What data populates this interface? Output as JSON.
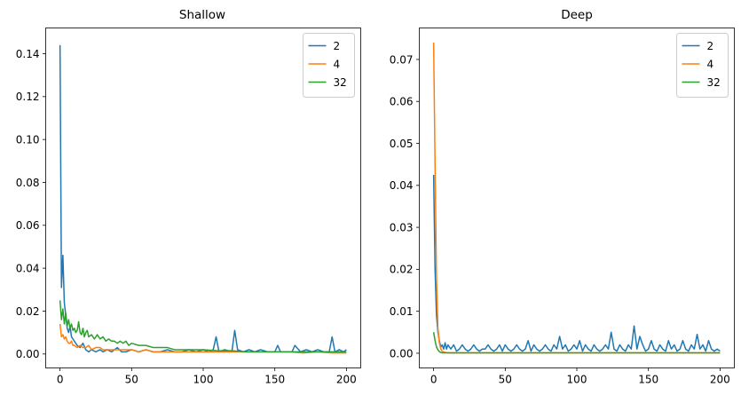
{
  "chart_data": [
    {
      "type": "line",
      "title": "Shallow",
      "xlabel": "",
      "ylabel": "",
      "xlim": [
        -10,
        210
      ],
      "ylim": [
        -0.0065,
        0.152
      ],
      "xticks": [
        0,
        50,
        100,
        150,
        200
      ],
      "xtick_labels": [
        "0",
        "50",
        "100",
        "150",
        "200"
      ],
      "yticks": [
        0.0,
        0.02,
        0.04,
        0.06,
        0.08,
        0.1,
        0.12,
        0.14
      ],
      "ytick_labels": [
        "0.00",
        "0.02",
        "0.04",
        "0.06",
        "0.08",
        "0.10",
        "0.12",
        "0.14"
      ],
      "legend_position": "top-right",
      "grid": false,
      "series": [
        {
          "name": "2",
          "color": "#1f77b4",
          "x": [
            0,
            1,
            2,
            3,
            4,
            5,
            6,
            7,
            8,
            9,
            10,
            12,
            14,
            16,
            18,
            20,
            22,
            25,
            28,
            30,
            33,
            36,
            40,
            43,
            46,
            50,
            55,
            60,
            65,
            70,
            75,
            80,
            85,
            90,
            95,
            100,
            104,
            107,
            109,
            111,
            115,
            120,
            122,
            124,
            128,
            132,
            136,
            140,
            145,
            150,
            152,
            154,
            158,
            162,
            164,
            168,
            172,
            176,
            180,
            184,
            188,
            190,
            192,
            195,
            198,
            200
          ],
          "y": [
            0.144,
            0.031,
            0.046,
            0.024,
            0.018,
            0.012,
            0.01,
            0.013,
            0.008,
            0.007,
            0.006,
            0.004,
            0.003,
            0.005,
            0.002,
            0.001,
            0.002,
            0.001,
            0.002,
            0.001,
            0.002,
            0.001,
            0.003,
            0.001,
            0.001,
            0.002,
            0.001,
            0.002,
            0.001,
            0.001,
            0.002,
            0.001,
            0.001,
            0.002,
            0.001,
            0.002,
            0.001,
            0.002,
            0.008,
            0.001,
            0.002,
            0.001,
            0.011,
            0.002,
            0.001,
            0.002,
            0.001,
            0.002,
            0.001,
            0.001,
            0.004,
            0.001,
            0.001,
            0.001,
            0.004,
            0.001,
            0.002,
            0.001,
            0.002,
            0.001,
            0.001,
            0.008,
            0.001,
            0.002,
            0.001,
            0.002
          ]
        },
        {
          "name": "4",
          "color": "#ff7f0e",
          "x": [
            0,
            1,
            2,
            3,
            4,
            5,
            6,
            7,
            8,
            9,
            10,
            12,
            14,
            16,
            18,
            20,
            22,
            25,
            28,
            30,
            35,
            40,
            45,
            50,
            55,
            60,
            65,
            70,
            75,
            80,
            90,
            100,
            110,
            120,
            130,
            140,
            150,
            160,
            170,
            180,
            190,
            200
          ],
          "y": [
            0.014,
            0.008,
            0.009,
            0.007,
            0.008,
            0.006,
            0.005,
            0.005,
            0.006,
            0.004,
            0.004,
            0.003,
            0.004,
            0.003,
            0.003,
            0.004,
            0.002,
            0.003,
            0.003,
            0.002,
            0.002,
            0.002,
            0.002,
            0.002,
            0.001,
            0.002,
            0.001,
            0.001,
            0.001,
            0.001,
            0.001,
            0.001,
            0.001,
            0.001,
            0.001,
            0.001,
            0.001,
            0.001,
            0.0005,
            0.001,
            0.0005,
            0.0005
          ]
        },
        {
          "name": "32",
          "color": "#2ca02c",
          "x": [
            0,
            1,
            2,
            3,
            4,
            5,
            6,
            7,
            8,
            9,
            10,
            11,
            12,
            13,
            14,
            15,
            16,
            17,
            18,
            19,
            20,
            22,
            24,
            26,
            28,
            30,
            32,
            34,
            36,
            38,
            40,
            42,
            44,
            46,
            48,
            50,
            55,
            60,
            65,
            70,
            75,
            80,
            85,
            90,
            95,
            100,
            110,
            120,
            130,
            140,
            150,
            160,
            170,
            180,
            190,
            200
          ],
          "y": [
            0.025,
            0.016,
            0.021,
            0.014,
            0.019,
            0.013,
            0.016,
            0.012,
            0.014,
            0.011,
            0.012,
            0.01,
            0.011,
            0.015,
            0.01,
            0.009,
            0.012,
            0.008,
            0.01,
            0.011,
            0.008,
            0.009,
            0.007,
            0.009,
            0.007,
            0.008,
            0.006,
            0.007,
            0.006,
            0.006,
            0.005,
            0.006,
            0.005,
            0.006,
            0.004,
            0.005,
            0.004,
            0.004,
            0.003,
            0.003,
            0.003,
            0.002,
            0.002,
            0.002,
            0.002,
            0.002,
            0.0015,
            0.0015,
            0.001,
            0.001,
            0.001,
            0.001,
            0.001,
            0.001,
            0.001,
            0.001
          ]
        }
      ]
    },
    {
      "type": "line",
      "title": "Deep",
      "xlabel": "",
      "ylabel": "",
      "xlim": [
        -10,
        210
      ],
      "ylim": [
        -0.0035,
        0.0775
      ],
      "xticks": [
        0,
        50,
        100,
        150,
        200
      ],
      "xtick_labels": [
        "0",
        "50",
        "100",
        "150",
        "200"
      ],
      "yticks": [
        0.0,
        0.01,
        0.02,
        0.03,
        0.04,
        0.05,
        0.06,
        0.07
      ],
      "ytick_labels": [
        "0.00",
        "0.01",
        "0.02",
        "0.03",
        "0.04",
        "0.05",
        "0.06",
        "0.07"
      ],
      "legend_position": "top-right",
      "grid": false,
      "series": [
        {
          "name": "2",
          "color": "#1f77b4",
          "x": [
            0,
            1,
            2,
            3,
            4,
            5,
            6,
            7,
            8,
            9,
            10,
            12,
            14,
            16,
            18,
            20,
            22,
            24,
            26,
            28,
            30,
            32,
            34,
            36,
            38,
            40,
            42,
            44,
            46,
            48,
            50,
            52,
            54,
            56,
            58,
            60,
            62,
            64,
            66,
            68,
            70,
            72,
            74,
            76,
            78,
            80,
            82,
            84,
            86,
            88,
            90,
            92,
            94,
            96,
            98,
            100,
            102,
            104,
            106,
            108,
            110,
            112,
            114,
            116,
            118,
            120,
            122,
            124,
            126,
            128,
            130,
            132,
            134,
            136,
            138,
            140,
            142,
            144,
            146,
            148,
            150,
            152,
            154,
            156,
            158,
            160,
            162,
            164,
            166,
            168,
            170,
            172,
            174,
            176,
            178,
            180,
            182,
            184,
            186,
            188,
            190,
            192,
            194,
            196,
            198,
            200
          ],
          "y": [
            0.0425,
            0.02,
            0.009,
            0.005,
            0.003,
            0.0015,
            0.002,
            0.001,
            0.0025,
            0.001,
            0.002,
            0.001,
            0.002,
            0.0005,
            0.001,
            0.002,
            0.001,
            0.0005,
            0.001,
            0.002,
            0.001,
            0.0005,
            0.001,
            0.001,
            0.002,
            0.001,
            0.0005,
            0.001,
            0.002,
            0.0005,
            0.002,
            0.001,
            0.0005,
            0.001,
            0.002,
            0.001,
            0.0005,
            0.001,
            0.003,
            0.0005,
            0.002,
            0.001,
            0.0005,
            0.001,
            0.002,
            0.001,
            0.0005,
            0.002,
            0.001,
            0.004,
            0.001,
            0.002,
            0.0005,
            0.001,
            0.002,
            0.001,
            0.003,
            0.0005,
            0.002,
            0.001,
            0.0005,
            0.002,
            0.001,
            0.0005,
            0.001,
            0.002,
            0.001,
            0.005,
            0.001,
            0.0005,
            0.002,
            0.001,
            0.0005,
            0.002,
            0.001,
            0.0065,
            0.001,
            0.004,
            0.002,
            0.0005,
            0.001,
            0.003,
            0.001,
            0.0005,
            0.002,
            0.001,
            0.0005,
            0.003,
            0.001,
            0.002,
            0.0005,
            0.001,
            0.003,
            0.001,
            0.0005,
            0.002,
            0.001,
            0.0045,
            0.001,
            0.002,
            0.0005,
            0.003,
            0.001,
            0.0005,
            0.001,
            0.0005
          ]
        },
        {
          "name": "4",
          "color": "#ff7f0e",
          "x": [
            0,
            1,
            2,
            3,
            4,
            5,
            6,
            7,
            8,
            10,
            15,
            20,
            30,
            40,
            50,
            60,
            70,
            80,
            90,
            100,
            120,
            140,
            160,
            180,
            200
          ],
          "y": [
            0.074,
            0.045,
            0.018,
            0.006,
            0.0025,
            0.001,
            0.0005,
            0.0003,
            0.0002,
            0.0001,
            0.0001,
            0.0001,
            0.0001,
            0.0001,
            0.0001,
            0.0001,
            0.0001,
            0.0001,
            0.0001,
            0.0001,
            0.0001,
            0.0001,
            0.0001,
            0.0001,
            0.0001
          ]
        },
        {
          "name": "32",
          "color": "#2ca02c",
          "x": [
            0,
            1,
            2,
            3,
            4,
            5,
            6,
            8,
            10,
            15,
            20,
            30,
            40,
            50,
            60,
            70,
            80,
            90,
            100,
            120,
            140,
            160,
            180,
            200
          ],
          "y": [
            0.005,
            0.003,
            0.0015,
            0.0008,
            0.0004,
            0.0002,
            0.0001,
            0.0001,
            0.0001,
            0.0001,
            0.0001,
            0.0001,
            0.0001,
            0.0001,
            0.0001,
            0.0001,
            0.0001,
            0.0001,
            0.0001,
            0.0001,
            0.0001,
            0.0001,
            0.0001,
            0.0001
          ]
        }
      ]
    }
  ]
}
